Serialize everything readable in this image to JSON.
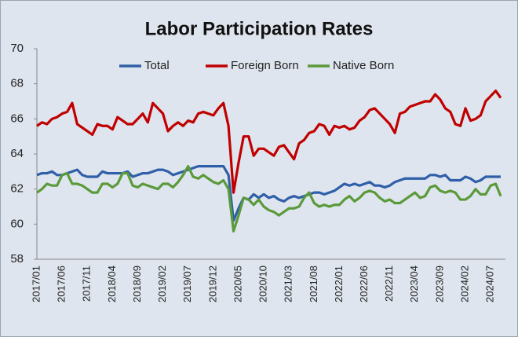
{
  "chart_data": {
    "type": "line",
    "title": "Labor Participation Rates",
    "categories": [
      "2017/01",
      null,
      null,
      null,
      null,
      "2017/06",
      null,
      null,
      null,
      null,
      "2017/11",
      null,
      null,
      null,
      null,
      "2018/04",
      null,
      null,
      null,
      null,
      "2018/09",
      null,
      null,
      null,
      null,
      "2019/02",
      null,
      null,
      null,
      null,
      "2019/07",
      null,
      null,
      null,
      null,
      "2019/12",
      null,
      null,
      null,
      null,
      "2020/05",
      null,
      null,
      null,
      null,
      "2020/10",
      null,
      null,
      null,
      null,
      "2021/03",
      null,
      null,
      null,
      null,
      "2021/08",
      null,
      null,
      null,
      null,
      "2022/01",
      null,
      null,
      null,
      null,
      "2022/06",
      null,
      null,
      null,
      null,
      "2022/11",
      null,
      null,
      null,
      null,
      "2023/04",
      null,
      null,
      null,
      null,
      "2023/09",
      null,
      null,
      null,
      null,
      "2024/02",
      null,
      null,
      null,
      null,
      "2024/07",
      null,
      null
    ],
    "series": [
      {
        "name": "Total",
        "color": "#2f5fa8",
        "values": [
          62.8,
          62.9,
          62.9,
          63.0,
          62.8,
          62.8,
          62.9,
          63.0,
          63.1,
          62.8,
          62.7,
          62.7,
          62.7,
          63.0,
          62.9,
          62.9,
          62.9,
          62.9,
          63.0,
          62.7,
          62.8,
          62.9,
          62.9,
          63.0,
          63.1,
          63.1,
          63.0,
          62.8,
          62.9,
          63.0,
          63.1,
          63.2,
          63.3,
          63.3,
          63.3,
          63.3,
          63.3,
          63.3,
          62.8,
          60.2,
          60.9,
          61.5,
          61.4,
          61.7,
          61.5,
          61.7,
          61.5,
          61.6,
          61.4,
          61.3,
          61.5,
          61.6,
          61.5,
          61.6,
          61.7,
          61.8,
          61.8,
          61.7,
          61.8,
          61.9,
          62.1,
          62.3,
          62.2,
          62.3,
          62.2,
          62.3,
          62.4,
          62.2,
          62.2,
          62.1,
          62.2,
          62.4,
          62.5,
          62.6,
          62.6,
          62.6,
          62.6,
          62.6,
          62.8,
          62.8,
          62.7,
          62.8,
          62.5,
          62.5,
          62.5,
          62.7,
          62.6,
          62.4,
          62.5,
          62.7,
          62.7,
          62.7,
          62.7
        ]
      },
      {
        "name": "Foreign Born",
        "color": "#c00000",
        "values": [
          65.6,
          65.8,
          65.7,
          66.0,
          66.1,
          66.3,
          66.4,
          66.9,
          65.7,
          65.5,
          65.3,
          65.1,
          65.7,
          65.6,
          65.6,
          65.4,
          66.1,
          65.9,
          65.7,
          65.7,
          66.0,
          66.3,
          65.8,
          66.9,
          66.6,
          66.3,
          65.3,
          65.6,
          65.8,
          65.6,
          65.9,
          65.8,
          66.3,
          66.4,
          66.3,
          66.2,
          66.6,
          66.9,
          65.6,
          61.8,
          63.5,
          65.0,
          65.0,
          63.9,
          64.3,
          64.3,
          64.1,
          63.9,
          64.4,
          64.5,
          64.1,
          63.7,
          64.6,
          64.8,
          65.2,
          65.3,
          65.7,
          65.6,
          65.1,
          65.6,
          65.5,
          65.6,
          65.4,
          65.5,
          65.9,
          66.1,
          66.5,
          66.6,
          66.3,
          66.0,
          65.7,
          65.2,
          66.3,
          66.4,
          66.7,
          66.8,
          66.9,
          67.0,
          67.0,
          67.4,
          67.1,
          66.6,
          66.4,
          65.7,
          65.6,
          66.6,
          65.9,
          66.0,
          66.2,
          67.0,
          67.3,
          67.6,
          67.2
        ]
      },
      {
        "name": "Native Born",
        "color": "#5a9a3a",
        "values": [
          61.8,
          62.0,
          62.3,
          62.2,
          62.2,
          62.8,
          62.9,
          62.3,
          62.3,
          62.2,
          62.0,
          61.8,
          61.8,
          62.3,
          62.3,
          62.1,
          62.3,
          62.9,
          62.9,
          62.2,
          62.1,
          62.3,
          62.2,
          62.1,
          62.0,
          62.3,
          62.3,
          62.1,
          62.4,
          62.8,
          63.3,
          62.7,
          62.6,
          62.8,
          62.6,
          62.4,
          62.3,
          62.5,
          62.0,
          59.6,
          60.5,
          61.5,
          61.4,
          61.1,
          61.4,
          61.0,
          60.8,
          60.7,
          60.5,
          60.7,
          60.9,
          60.9,
          61.0,
          61.5,
          61.8,
          61.2,
          61.0,
          61.1,
          61.0,
          61.1,
          61.1,
          61.4,
          61.6,
          61.3,
          61.5,
          61.8,
          61.9,
          61.8,
          61.5,
          61.3,
          61.4,
          61.2,
          61.2,
          61.4,
          61.6,
          61.8,
          61.5,
          61.6,
          62.1,
          62.2,
          61.9,
          61.8,
          61.9,
          61.8,
          61.4,
          61.4,
          61.6,
          62.0,
          61.7,
          61.7,
          62.2,
          62.3,
          61.6
        ]
      }
    ],
    "ylim": [
      58,
      70
    ],
    "yticks": [
      58,
      60,
      62,
      64,
      66,
      68,
      70
    ],
    "grid": false
  }
}
